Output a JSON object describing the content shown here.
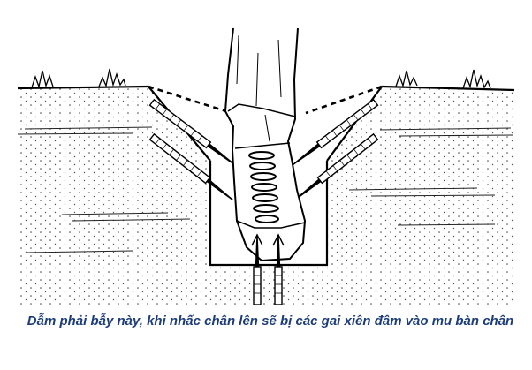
{
  "caption": {
    "text": "Dẫm phải bẫy này, khi nhấc chân lên sẽ bị các gai xiên đâm vào mu bàn chân",
    "color": "#1c3d7a"
  },
  "diagram": {
    "line_color": "#000000",
    "soil_color": "#f2f2f2"
  }
}
